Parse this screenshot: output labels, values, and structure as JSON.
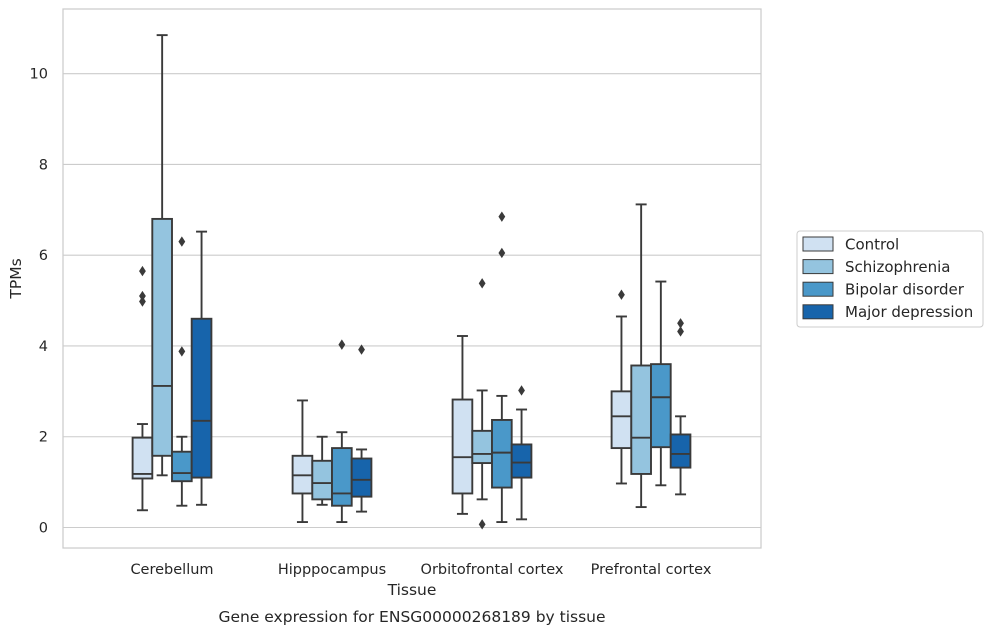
{
  "chart_data": {
    "type": "box",
    "caption": "Gene expression for ENSG00000268189 by tissue",
    "xlabel": "Tissue",
    "ylabel": "TPMs",
    "ylim": [
      -0.45,
      11.4
    ],
    "yticks": [
      0,
      2,
      4,
      6,
      8,
      10
    ],
    "grid": true,
    "legend_position": "right",
    "categories": [
      "Cerebellum",
      "Hipppocampus",
      "Orbitofrontal cortex",
      "Prefrontal cortex"
    ],
    "series": [
      {
        "name": "Control",
        "color": "#d0e1f2",
        "boxes": [
          {
            "whislo": 0.38,
            "q1": 1.08,
            "med": 1.18,
            "q3": 1.98,
            "whishi": 2.28,
            "fliers": [
              5.65,
              5.1,
              4.98
            ]
          },
          {
            "whislo": 0.12,
            "q1": 0.75,
            "med": 1.15,
            "q3": 1.58,
            "whishi": 2.8,
            "fliers": []
          },
          {
            "whislo": 0.3,
            "q1": 0.75,
            "med": 1.55,
            "q3": 2.82,
            "whishi": 4.22,
            "fliers": []
          },
          {
            "whislo": 0.97,
            "q1": 1.75,
            "med": 2.45,
            "q3": 3.0,
            "whishi": 4.65,
            "fliers": [
              5.13
            ]
          }
        ]
      },
      {
        "name": "Schizophrenia",
        "color": "#94c4df",
        "boxes": [
          {
            "whislo": 1.15,
            "q1": 1.58,
            "med": 3.12,
            "q3": 6.8,
            "whishi": 10.85,
            "fliers": []
          },
          {
            "whislo": 0.5,
            "q1": 0.62,
            "med": 0.98,
            "q3": 1.47,
            "whishi": 2.0,
            "fliers": []
          },
          {
            "whislo": 0.62,
            "q1": 1.42,
            "med": 1.62,
            "q3": 2.13,
            "whishi": 3.02,
            "fliers": [
              5.38,
              0.07
            ]
          },
          {
            "whislo": 0.45,
            "q1": 1.18,
            "med": 1.98,
            "q3": 3.57,
            "whishi": 7.12,
            "fliers": []
          }
        ]
      },
      {
        "name": "Bipolar disorder",
        "color": "#4a98c9",
        "boxes": [
          {
            "whislo": 0.48,
            "q1": 1.02,
            "med": 1.2,
            "q3": 1.67,
            "whishi": 2.0,
            "fliers": [
              6.3,
              3.88
            ]
          },
          {
            "whislo": 0.12,
            "q1": 0.48,
            "med": 0.75,
            "q3": 1.75,
            "whishi": 2.1,
            "fliers": [
              4.03
            ]
          },
          {
            "whislo": 0.12,
            "q1": 0.88,
            "med": 1.65,
            "q3": 2.37,
            "whishi": 2.9,
            "fliers": [
              6.85,
              6.05
            ]
          },
          {
            "whislo": 0.93,
            "q1": 1.77,
            "med": 2.87,
            "q3": 3.6,
            "whishi": 5.42,
            "fliers": []
          }
        ]
      },
      {
        "name": "Major depression",
        "color": "#1764ab",
        "boxes": [
          {
            "whislo": 0.5,
            "q1": 1.1,
            "med": 2.35,
            "q3": 4.6,
            "whishi": 6.52,
            "fliers": []
          },
          {
            "whislo": 0.35,
            "q1": 0.68,
            "med": 1.05,
            "q3": 1.52,
            "whishi": 1.72,
            "fliers": [
              3.92
            ]
          },
          {
            "whislo": 0.18,
            "q1": 1.1,
            "med": 1.43,
            "q3": 1.83,
            "whishi": 2.6,
            "fliers": [
              3.02
            ]
          },
          {
            "whislo": 0.73,
            "q1": 1.32,
            "med": 1.62,
            "q3": 2.05,
            "whishi": 2.45,
            "fliers": [
              4.5,
              4.32
            ]
          }
        ]
      }
    ]
  }
}
